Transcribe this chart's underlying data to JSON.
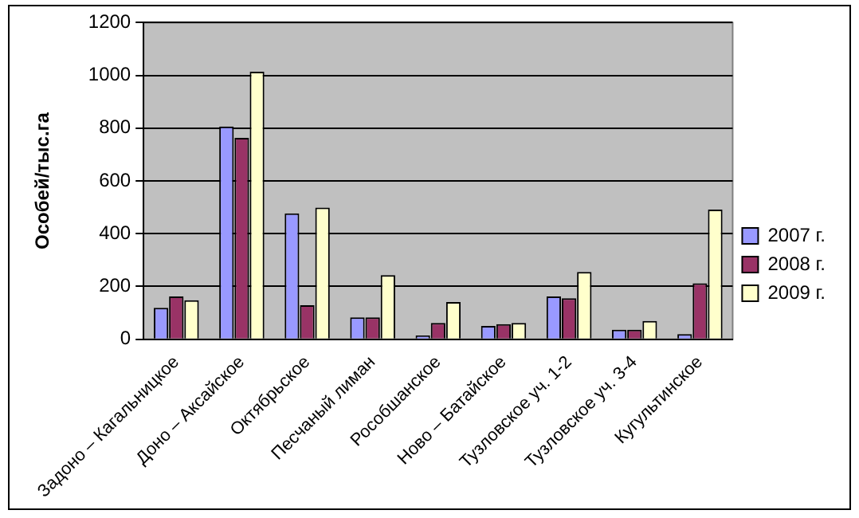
{
  "chart_data": {
    "type": "bar",
    "ylabel": "Особей/тыс.га",
    "categories": [
      "Задоно – Кагальницкое",
      "Доно – Аксайское",
      "Октябрьское",
      "Песчаный лиман",
      "Рособшанское",
      "Ново – Батайское",
      "Тузловское уч. 1-2",
      "Тузловское уч. 3-4",
      "Кугультинское"
    ],
    "series": [
      {
        "name": "2007 г.",
        "color": "#9999ff",
        "values": [
          119,
          806,
          477,
          83,
          14,
          50,
          162,
          36,
          19
        ]
      },
      {
        "name": "2008 г.",
        "color": "#993366",
        "values": [
          162,
          763,
          129,
          83,
          62,
          57,
          155,
          36,
          212
        ]
      },
      {
        "name": "2009 г.",
        "color": "#ffffcc",
        "values": [
          148,
          1014,
          499,
          243,
          141,
          62,
          255,
          69,
          491
        ]
      }
    ],
    "ylim": [
      0,
      1200
    ],
    "yticks": [
      0,
      200,
      400,
      600,
      800,
      1000,
      1200
    ],
    "grid": "y",
    "legend": "right"
  }
}
